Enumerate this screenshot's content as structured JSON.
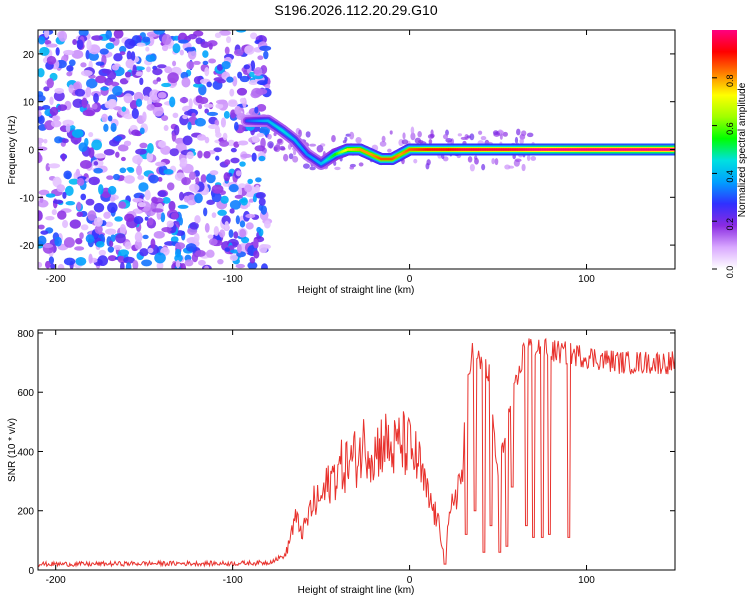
{
  "title": "S196.2026.112.20.29.G10",
  "chart_data": [
    {
      "type": "heatmap",
      "xlabel": "Height of straight line (km)",
      "ylabel": "Frequency (Hz)",
      "xlim": [
        -210,
        150
      ],
      "ylim": [
        -25,
        25
      ],
      "xticks": [
        -200,
        -100,
        0,
        100
      ],
      "yticks": [
        -20,
        -10,
        0,
        10,
        20
      ],
      "colorbar": {
        "label": "Normalized spectral amplitude",
        "range": [
          0.0,
          1.0
        ],
        "ticks": [
          0.0,
          0.2,
          0.4,
          0.6,
          0.8
        ],
        "tick_labels": [
          "0.0",
          "0.2",
          "0.4",
          "0.6",
          "0.8"
        ],
        "colors": [
          "#ffffff",
          "#d9a8ff",
          "#8a2be2",
          "#3030ff",
          "#00a0ff",
          "#00e0e0",
          "#00ff00",
          "#a0ff00",
          "#ffff00",
          "#ff8000",
          "#ff0000",
          "#ff0080"
        ]
      },
      "noise_region_x": [
        -210,
        -80
      ],
      "ridge": {
        "x": [
          -92,
          -80,
          -72,
          -65,
          -58,
          -50,
          -42,
          -35,
          -28,
          -22,
          -16,
          -10,
          -5,
          0,
          10,
          20,
          30,
          40,
          50,
          60,
          70,
          100,
          150
        ],
        "freq": [
          6,
          6,
          4,
          2,
          -1,
          -3,
          -1,
          0,
          0,
          -1,
          -2,
          -2,
          -1,
          0,
          0,
          0,
          0,
          0,
          0,
          0,
          0,
          0,
          0
        ],
        "amplitude": [
          0.25,
          0.35,
          0.4,
          0.35,
          0.3,
          0.35,
          0.5,
          0.7,
          0.75,
          0.75,
          0.8,
          0.8,
          0.75,
          0.8,
          0.85,
          0.85,
          0.9,
          0.9,
          0.9,
          0.9,
          0.95,
          1.0,
          1.0
        ]
      }
    },
    {
      "type": "line",
      "xlabel": "Height of straight line (km)",
      "ylabel": "SNR (10 * v/v)",
      "xlim": [
        -210,
        150
      ],
      "ylim": [
        0,
        810
      ],
      "xticks": [
        -200,
        -100,
        0,
        100
      ],
      "yticks": [
        0,
        200,
        400,
        600,
        800
      ],
      "color": "#e8322d",
      "x": [
        -210,
        -180,
        -150,
        -120,
        -100,
        -80,
        -70,
        -65,
        -60,
        -55,
        -50,
        -45,
        -40,
        -35,
        -30,
        -25,
        -20,
        -15,
        -10,
        -5,
        0,
        5,
        10,
        15,
        20,
        25,
        30,
        32,
        35,
        40,
        45,
        50,
        55,
        60,
        62,
        65,
        70,
        80,
        90,
        100,
        120,
        140,
        150
      ],
      "y": [
        20,
        20,
        22,
        22,
        22,
        25,
        50,
        170,
        130,
        220,
        240,
        300,
        340,
        360,
        380,
        430,
        390,
        440,
        400,
        430,
        410,
        360,
        250,
        180,
        60,
        250,
        320,
        600,
        740,
        700,
        660,
        300,
        500,
        620,
        660,
        760,
        760,
        740,
        730,
        720,
        700,
        700,
        700
      ],
      "dropouts": [
        {
          "x": 20,
          "min": 20
        },
        {
          "x": 32,
          "min": 120
        },
        {
          "x": 37,
          "min": 200
        },
        {
          "x": 42,
          "min": 60
        },
        {
          "x": 46,
          "min": 150
        },
        {
          "x": 51,
          "min": 60
        },
        {
          "x": 55,
          "min": 80
        },
        {
          "x": 58,
          "min": 280
        },
        {
          "x": 66,
          "min": 150
        },
        {
          "x": 70,
          "min": 110
        },
        {
          "x": 75,
          "min": 110
        },
        {
          "x": 79,
          "min": 120
        },
        {
          "x": 90,
          "min": 110
        }
      ]
    }
  ]
}
